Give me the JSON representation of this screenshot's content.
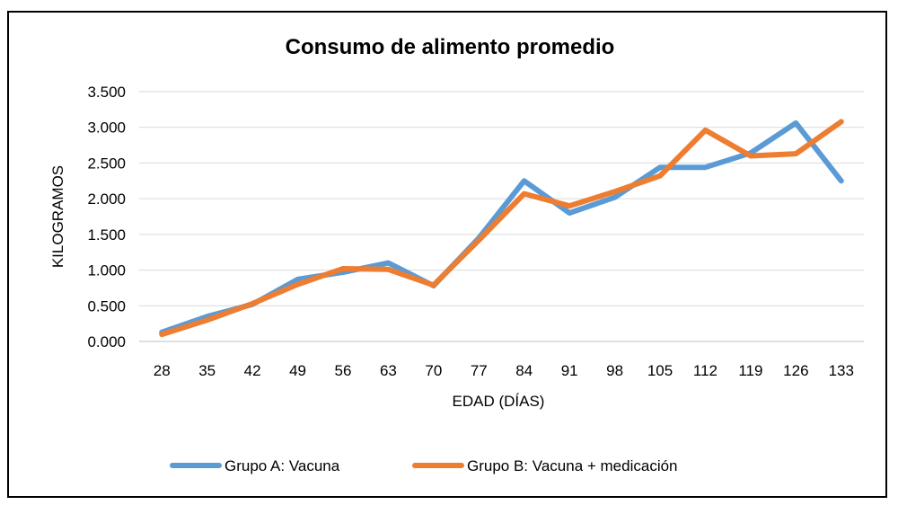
{
  "chart_data": {
    "type": "line",
    "title": "Consumo de alimento promedio",
    "xlabel": "EDAD (DÍAS)",
    "ylabel": "KILOGRAMOS",
    "categories": [
      "28",
      "35",
      "42",
      "49",
      "56",
      "63",
      "70",
      "77",
      "84",
      "91",
      "98",
      "105",
      "112",
      "119",
      "126",
      "133"
    ],
    "ylim": [
      0,
      3.5
    ],
    "yticks": [
      0,
      0.5,
      1,
      1.5,
      2,
      2.5,
      3,
      3.5
    ],
    "ytick_labels": [
      "0.000",
      "0.500",
      "1.000",
      "1.500",
      "2.000",
      "2.500",
      "3.000",
      "3.500"
    ],
    "grid": true,
    "legend_position": "bottom",
    "series": [
      {
        "name": "Grupo A: Vacuna",
        "color": "#5B9BD5",
        "values": [
          0.13,
          0.35,
          0.52,
          0.87,
          0.97,
          1.1,
          0.78,
          1.45,
          2.25,
          1.8,
          2.02,
          2.44,
          2.44,
          2.64,
          3.06,
          2.25
        ]
      },
      {
        "name": "Grupo B: Vacuna + medicación",
        "color": "#ED7D31",
        "values": [
          0.1,
          0.3,
          0.53,
          0.8,
          1.02,
          1.01,
          0.79,
          1.42,
          2.07,
          1.9,
          2.1,
          2.32,
          2.96,
          2.6,
          2.63,
          3.08
        ]
      }
    ]
  }
}
